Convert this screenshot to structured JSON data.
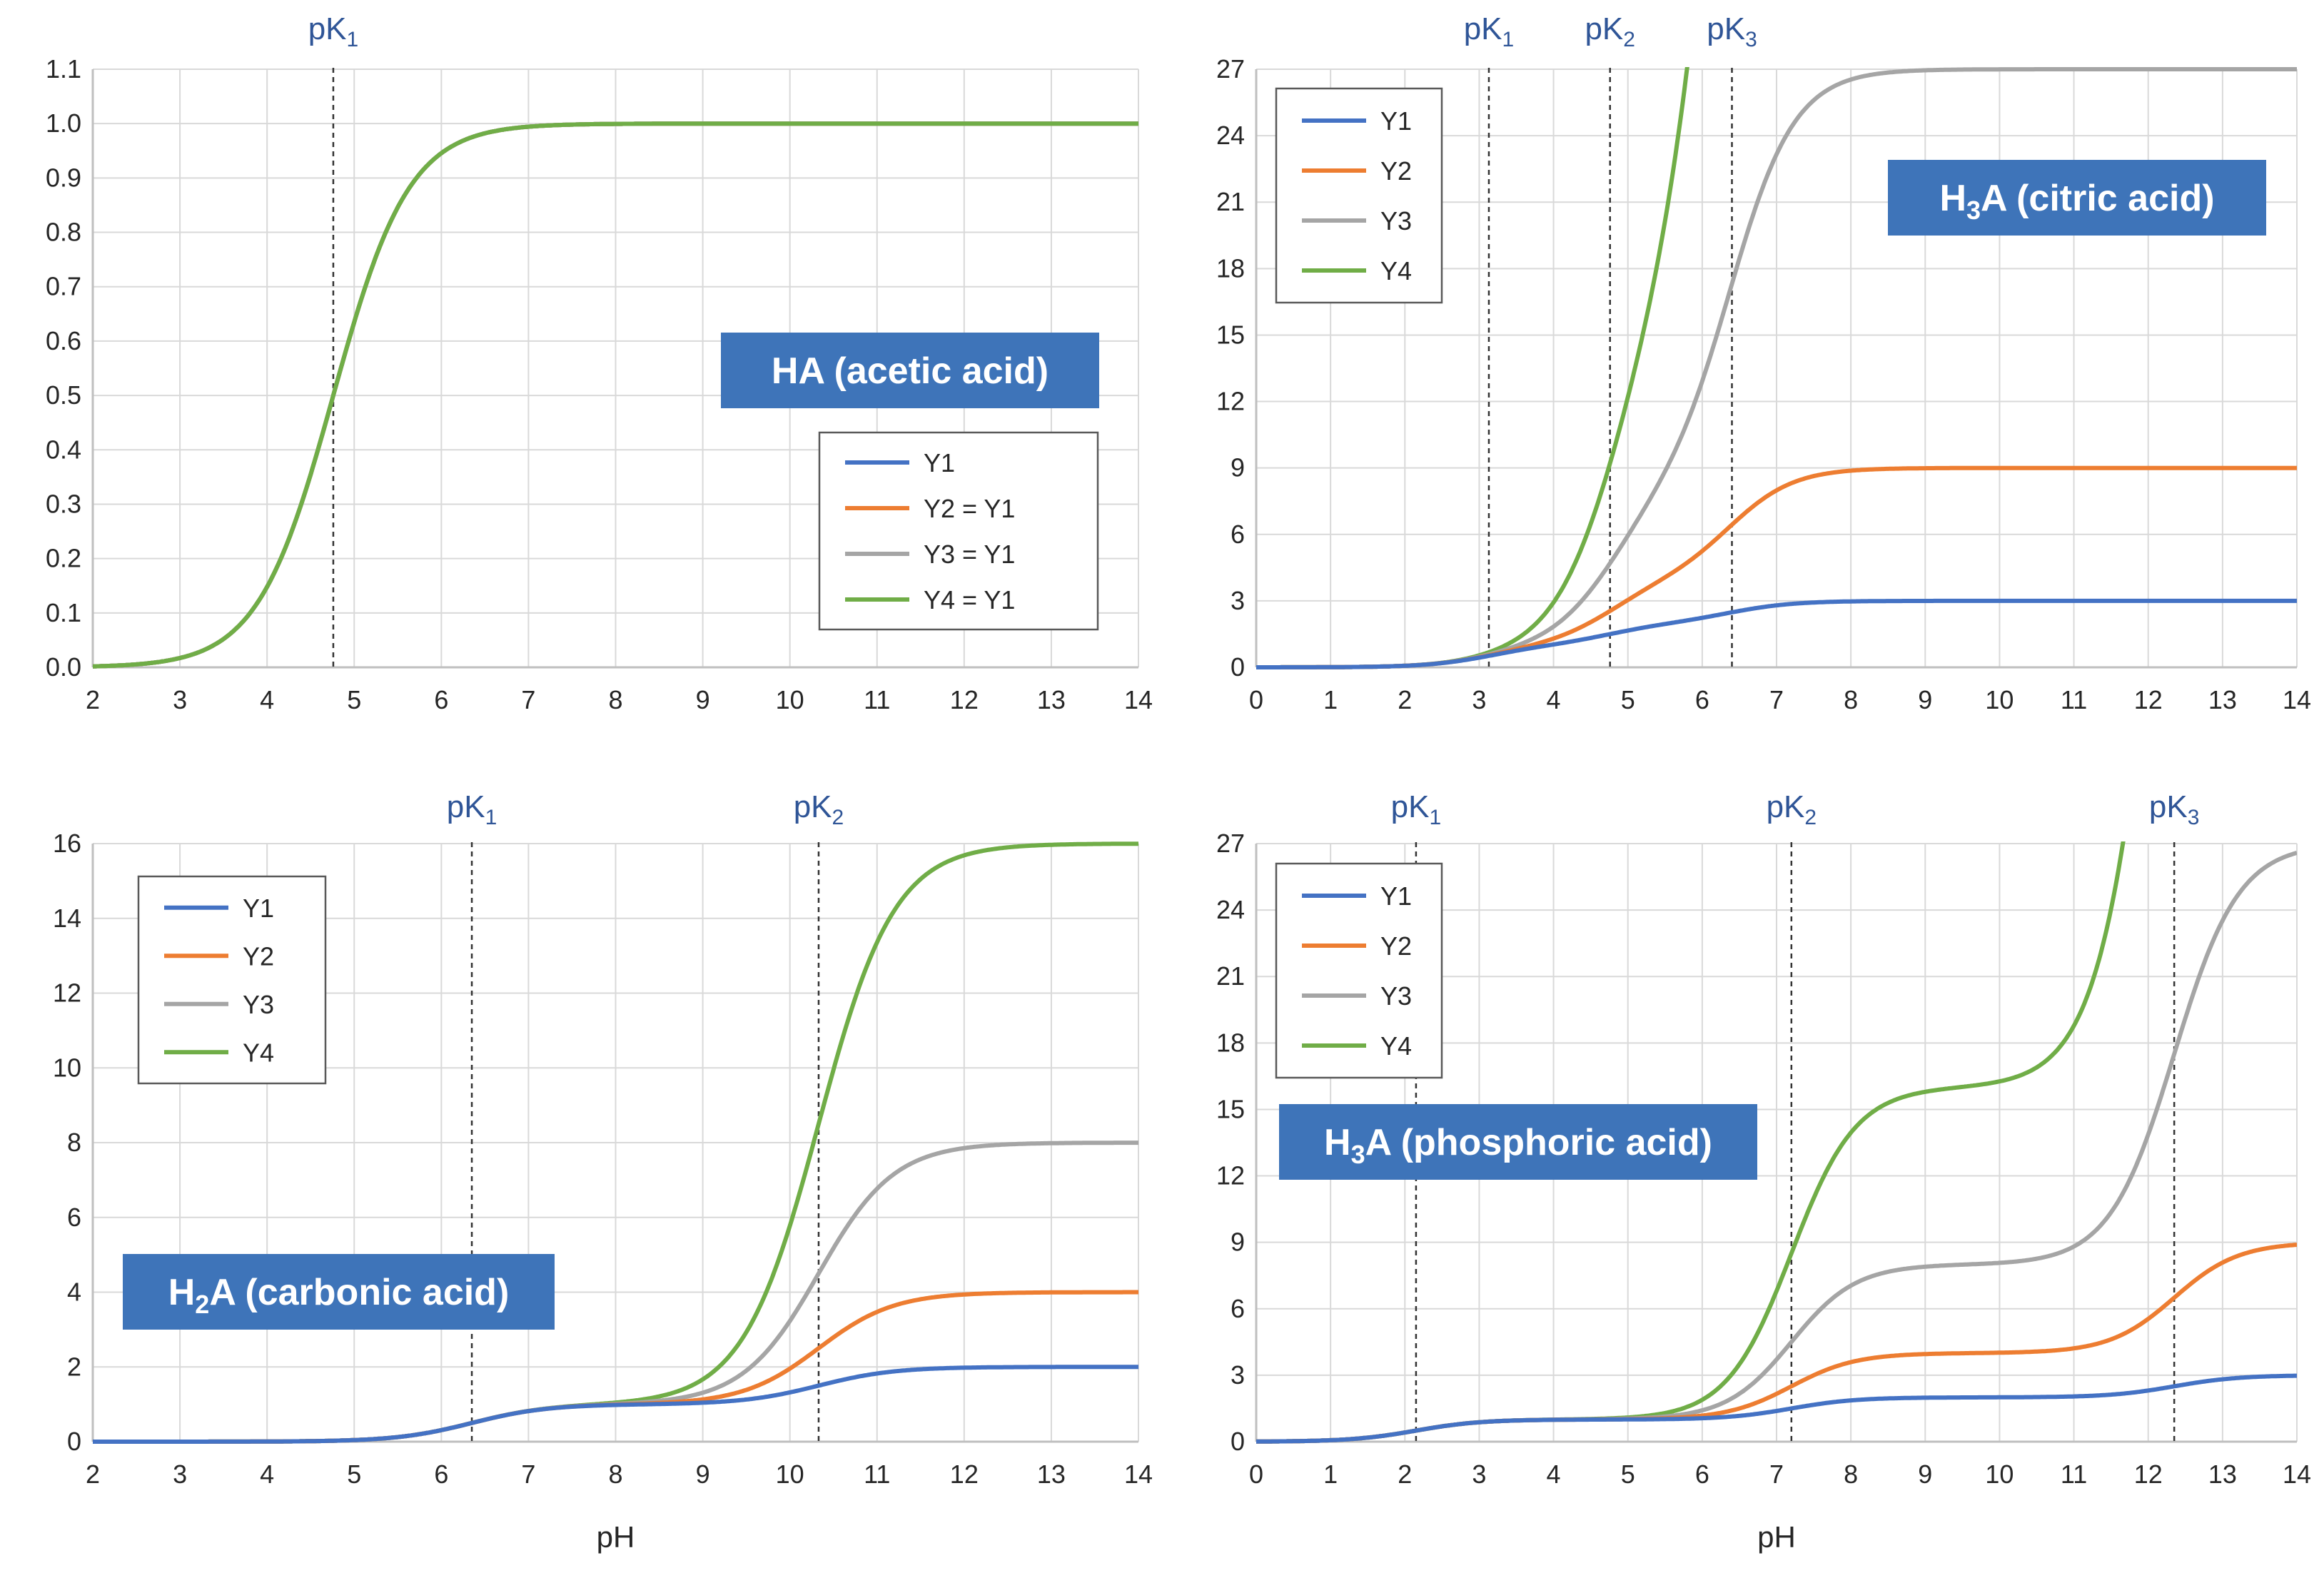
{
  "colors": {
    "Y1": "#4472C4",
    "Y2": "#ED7D31",
    "Y3": "#A5A5A5",
    "Y4": "#70AD47",
    "title_bg": "#3E74B9",
    "pk_text": "#2F5597",
    "grid": "#D9D9D9",
    "axis": "#BFBFBF"
  },
  "chart_data": [
    {
      "type": "line",
      "id": "acetic",
      "title_parts": [
        "HA (acetic acid)"
      ],
      "title_sub": [],
      "acid": "monoprotic",
      "pKs": [
        4.76
      ],
      "pk_labels": [
        {
          "main": "pK",
          "sub": "1"
        }
      ],
      "xlim": [
        2,
        14
      ],
      "ylim": [
        0,
        1.1
      ],
      "x_ticks": [
        "2",
        "3",
        "4",
        "5",
        "6",
        "7",
        "8",
        "9",
        "10",
        "11",
        "12",
        "13",
        "14"
      ],
      "y_ticks": [
        "0.0",
        "0.1",
        "0.2",
        "0.3",
        "0.4",
        "0.5",
        "0.6",
        "0.7",
        "0.8",
        "0.9",
        "1.0",
        "1.1"
      ],
      "xlabel": "",
      "legend": [
        "Y1",
        "Y2 = Y1",
        "Y3 = Y1",
        "Y4 = Y1"
      ],
      "legend_position": "bottom-right",
      "series": [
        {
          "name": "Y1",
          "power": 1
        },
        {
          "name": "Y2",
          "power": 1
        },
        {
          "name": "Y3",
          "power": 1
        },
        {
          "name": "Y4",
          "power": 1
        }
      ],
      "grid": true
    },
    {
      "type": "line",
      "id": "citric",
      "title_parts": [
        "H",
        "A (citric acid)"
      ],
      "title_sub": [
        "3"
      ],
      "acid": "triprotic",
      "pKs": [
        3.13,
        4.76,
        6.4
      ],
      "pk_labels": [
        {
          "main": "pK",
          "sub": "1"
        },
        {
          "main": "pK",
          "sub": "2"
        },
        {
          "main": "pK",
          "sub": "3"
        }
      ],
      "xlim": [
        0,
        14
      ],
      "ylim": [
        0,
        27
      ],
      "x_ticks": [
        "0",
        "1",
        "2",
        "3",
        "4",
        "5",
        "6",
        "7",
        "8",
        "9",
        "10",
        "11",
        "12",
        "13",
        "14"
      ],
      "y_ticks": [
        "0",
        "3",
        "6",
        "9",
        "12",
        "15",
        "18",
        "21",
        "24",
        "27"
      ],
      "xlabel": "",
      "legend": [
        "Y1",
        "Y2",
        "Y3",
        "Y4"
      ],
      "legend_position": "top-left",
      "series": [
        {
          "name": "Y1",
          "power": 1
        },
        {
          "name": "Y2",
          "power": 2
        },
        {
          "name": "Y3",
          "power": 3
        },
        {
          "name": "Y4",
          "power": 4
        }
      ],
      "grid": true
    },
    {
      "type": "line",
      "id": "carbonic",
      "title_parts": [
        "H",
        "A (carbonic acid)"
      ],
      "title_sub": [
        "2"
      ],
      "acid": "diprotic",
      "pKs": [
        6.35,
        10.33
      ],
      "pk_labels": [
        {
          "main": "pK",
          "sub": "1"
        },
        {
          "main": "pK",
          "sub": "2"
        }
      ],
      "xlim": [
        2,
        14
      ],
      "ylim": [
        0,
        16
      ],
      "x_ticks": [
        "2",
        "3",
        "4",
        "5",
        "6",
        "7",
        "8",
        "9",
        "10",
        "11",
        "12",
        "13",
        "14"
      ],
      "y_ticks": [
        "0",
        "2",
        "4",
        "6",
        "8",
        "10",
        "12",
        "14",
        "16"
      ],
      "xlabel": "pH",
      "legend": [
        "Y1",
        "Y2",
        "Y3",
        "Y4"
      ],
      "legend_position": "top-left",
      "series": [
        {
          "name": "Y1",
          "power": 1
        },
        {
          "name": "Y2",
          "power": 2
        },
        {
          "name": "Y3",
          "power": 3
        },
        {
          "name": "Y4",
          "power": 4
        }
      ],
      "grid": true
    },
    {
      "type": "line",
      "id": "phosphoric",
      "title_parts": [
        "H",
        "A (phosphoric acid)"
      ],
      "title_sub": [
        "3"
      ],
      "acid": "triprotic",
      "pKs": [
        2.15,
        7.2,
        12.35
      ],
      "pk_labels": [
        {
          "main": "pK",
          "sub": "1"
        },
        {
          "main": "pK",
          "sub": "2"
        },
        {
          "main": "pK",
          "sub": "3"
        }
      ],
      "xlim": [
        0,
        14
      ],
      "ylim": [
        0,
        27
      ],
      "x_ticks": [
        "0",
        "1",
        "2",
        "3",
        "4",
        "5",
        "6",
        "7",
        "8",
        "9",
        "10",
        "11",
        "12",
        "13",
        "14"
      ],
      "y_ticks": [
        "0",
        "3",
        "6",
        "9",
        "12",
        "15",
        "18",
        "21",
        "24",
        "27"
      ],
      "xlabel": "pH",
      "legend": [
        "Y1",
        "Y2",
        "Y3",
        "Y4"
      ],
      "legend_position": "top-left",
      "series": [
        {
          "name": "Y1",
          "power": 1
        },
        {
          "name": "Y2",
          "power": 2
        },
        {
          "name": "Y3",
          "power": 3
        },
        {
          "name": "Y4",
          "power": 4
        }
      ],
      "grid": true
    }
  ]
}
